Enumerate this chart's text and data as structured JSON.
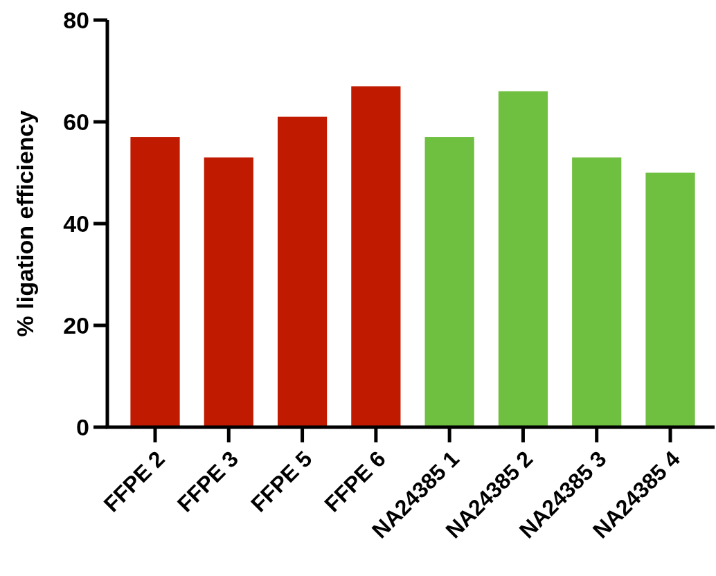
{
  "chart_data": {
    "type": "bar",
    "ylabel": "% ligation efficiency",
    "categories": [
      "FFPE 2",
      "FFPE 3",
      "FFPE 5",
      "FFPE 6",
      "NA24385 1",
      "NA24385 2",
      "NA24385 3",
      "NA24385 4"
    ],
    "values": [
      57,
      53,
      61,
      67,
      57,
      66,
      53,
      50
    ],
    "colors": [
      "#c01a00",
      "#c01a00",
      "#c01a00",
      "#c01a00",
      "#6fbf40",
      "#6fbf40",
      "#6fbf40",
      "#6fbf40"
    ],
    "ylim": [
      0,
      80
    ],
    "yticks": [
      0,
      20,
      40,
      60,
      80
    ]
  }
}
